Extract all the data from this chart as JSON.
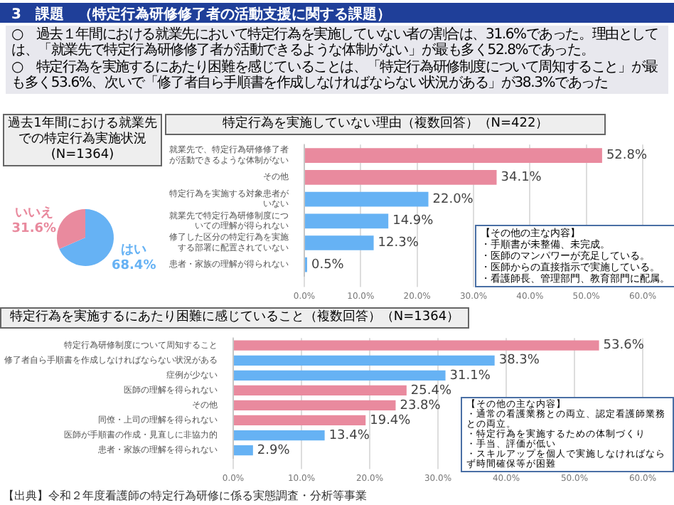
{
  "chart_data": [
    {
      "type": "other",
      "title": "3　課題　（特定行為研修修了者の活動支援に関する課題）",
      "annotations": [
        "○　過去１年間における就業先において特定行為を実施していない者の割合は、31.6%であった。理由としては、「就業先で特定行為研修修了者が活動できるような体制がない」が最も多く52.8%であった。",
        "○　特定行為を実施するにあたり困難を感じていることは、「特定行為研修制度について周知すること」が最も多く53.6%、次いで「修了者自ら手順書を作成しなければならない状況がある」が38.3%であった"
      ]
    },
    {
      "type": "pie",
      "title": "過去1年間における就業先での特定行為実施状況",
      "subtitle": "(N=1364)",
      "categories": [
        "はい",
        "いいえ"
      ],
      "values": [
        68.4,
        31.6
      ],
      "colors": [
        "#66b2f4",
        "#e98a9e"
      ],
      "value_labels": [
        "68.4%",
        "31.6%"
      ]
    },
    {
      "type": "bar",
      "orientation": "horizontal",
      "title": "特定行為を実施していない理由（複数回答）（N=422）",
      "categories": [
        "就業先で、特定行為研修修了者が活動できるような体制がない",
        "その他",
        "特定行為を実施する対象患者がいない",
        "就業先で特定行為研修制度についての理解が得られない",
        "修了した区分の特定行為を実施する部署に配置されていない",
        "患者・家族の理解が得られない"
      ],
      "values": [
        52.8,
        34.1,
        22.0,
        14.9,
        12.3,
        0.5
      ],
      "colors": [
        "#e98a9e",
        "#e98a9e",
        "#66b2f4",
        "#66b2f4",
        "#66b2f4",
        "#66b2f4"
      ],
      "value_labels": [
        "52.8%",
        "34.1%",
        "22.0%",
        "14.9%",
        "12.3%",
        "0.5%"
      ],
      "xlim": [
        0,
        60
      ],
      "xticks": [
        {
          "value": 0,
          "label": "0.0%"
        },
        {
          "value": 10,
          "label": "10.0%"
        },
        {
          "value": 20,
          "label": "20.0%"
        },
        {
          "value": 30,
          "label": "30.0%"
        },
        {
          "value": 40,
          "label": "40.0%"
        },
        {
          "value": 50,
          "label": "50.0%"
        },
        {
          "value": 60,
          "label": "60.0%"
        }
      ],
      "grid": "x",
      "annotations": [
        "【その他の主な内容】",
        "・手順書が未整備、未完成。",
        "・医師のマンパワーが充足している。",
        "・医師からの直接指示で実施している。",
        "・看護師長、管理部門、教育部門に配属。"
      ]
    },
    {
      "type": "bar",
      "orientation": "horizontal",
      "title": "特定行為を実施するにあたり困難に感じていること（複数回答）（N=1364）",
      "categories": [
        "特定行為研修制度について周知すること",
        "修了者自ら手順書を作成しなければならない状況がある",
        "症例が少ない",
        "医師の理解を得られない",
        "その他",
        "同僚・上司の理解を得られない",
        "医師が手順書の作成・見直しに非協力的",
        "患者・家族の理解を得られない"
      ],
      "values": [
        53.6,
        38.3,
        31.1,
        25.4,
        23.8,
        19.4,
        13.4,
        2.9
      ],
      "colors": [
        "#e98a9e",
        "#66b2f4",
        "#66b2f4",
        "#e98a9e",
        "#e98a9e",
        "#e98a9e",
        "#66b2f4",
        "#66b2f4"
      ],
      "value_labels": [
        "53.6%",
        "38.3%",
        "31.1%",
        "25.4%",
        "23.8%",
        "19.4%",
        "13.4%",
        "2.9%"
      ],
      "xlim": [
        0,
        60
      ],
      "xticks": [
        {
          "value": 0,
          "label": "0.0%"
        },
        {
          "value": 10,
          "label": "10.0%"
        },
        {
          "value": 20,
          "label": "20.0%"
        },
        {
          "value": 30,
          "label": "30.0%"
        },
        {
          "value": 40,
          "label": "40.0%"
        },
        {
          "value": 50,
          "label": "50.0%"
        },
        {
          "value": 60,
          "label": "60.0%"
        }
      ],
      "grid": "x",
      "annotations": [
        "【その他の主な内容】",
        "・通常の看護業務との両立、認定看護師業務との両立。",
        "・特定行為を実施するための体制づくり",
        "・手当、評価が低い",
        "・スキルアップを個人で実施しなければならず時間確保等が困難",
        "【出典】令和２年度看護師の特定行為研修に係る実態調査・分析等事業"
      ]
    }
  ]
}
